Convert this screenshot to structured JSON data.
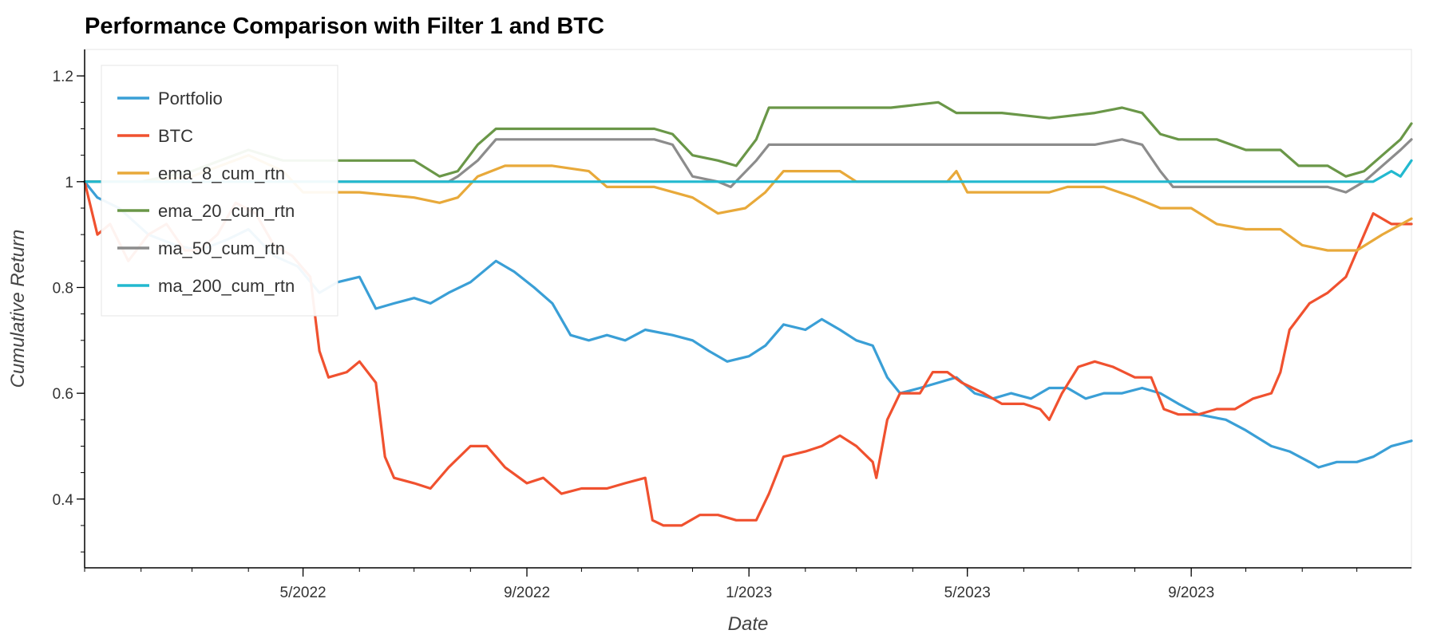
{
  "chart_data": {
    "type": "line",
    "title": "Performance Comparison with Filter 1 and BTC",
    "xlabel": "Date",
    "ylabel": "Cumulative Return",
    "x_range": [
      "2022-01-01",
      "2023-12-31"
    ],
    "ylim": [
      0.27,
      1.25
    ],
    "y_ticks": [
      0.4,
      0.6,
      0.8,
      1,
      1.2
    ],
    "y_tick_labels": [
      "0.4",
      "0.6",
      "0.8",
      "1",
      "1.2"
    ],
    "x_ticks": [
      "2022-05-01",
      "2022-09-01",
      "2023-01-01",
      "2023-05-01",
      "2023-09-01"
    ],
    "x_tick_labels": [
      "5/2022",
      "9/2022",
      "1/2023",
      "5/2023",
      "9/2023"
    ],
    "grid": false,
    "legend_position": "top-left",
    "series": [
      {
        "name": "Portfolio",
        "color": "#3a9fd6",
        "points": [
          [
            "2022-01-01",
            1.0
          ],
          [
            "2022-01-08",
            0.97
          ],
          [
            "2022-01-20",
            0.95
          ],
          [
            "2022-02-05",
            0.9
          ],
          [
            "2022-02-20",
            0.88
          ],
          [
            "2022-03-05",
            0.87
          ],
          [
            "2022-03-20",
            0.89
          ],
          [
            "2022-04-01",
            0.91
          ],
          [
            "2022-04-15",
            0.86
          ],
          [
            "2022-04-28",
            0.84
          ],
          [
            "2022-05-10",
            0.79
          ],
          [
            "2022-05-20",
            0.81
          ],
          [
            "2022-06-01",
            0.82
          ],
          [
            "2022-06-10",
            0.76
          ],
          [
            "2022-06-20",
            0.77
          ],
          [
            "2022-07-01",
            0.78
          ],
          [
            "2022-07-10",
            0.77
          ],
          [
            "2022-07-20",
            0.79
          ],
          [
            "2022-08-01",
            0.81
          ],
          [
            "2022-08-15",
            0.85
          ],
          [
            "2022-08-25",
            0.83
          ],
          [
            "2022-09-05",
            0.8
          ],
          [
            "2022-09-15",
            0.77
          ],
          [
            "2022-09-25",
            0.71
          ],
          [
            "2022-10-05",
            0.7
          ],
          [
            "2022-10-15",
            0.71
          ],
          [
            "2022-10-25",
            0.7
          ],
          [
            "2022-11-05",
            0.72
          ],
          [
            "2022-11-20",
            0.71
          ],
          [
            "2022-12-01",
            0.7
          ],
          [
            "2022-12-10",
            0.68
          ],
          [
            "2022-12-20",
            0.66
          ],
          [
            "2023-01-01",
            0.67
          ],
          [
            "2023-01-10",
            0.69
          ],
          [
            "2023-01-20",
            0.73
          ],
          [
            "2023-02-01",
            0.72
          ],
          [
            "2023-02-10",
            0.74
          ],
          [
            "2023-02-20",
            0.72
          ],
          [
            "2023-03-01",
            0.7
          ],
          [
            "2023-03-10",
            0.69
          ],
          [
            "2023-03-18",
            0.63
          ],
          [
            "2023-03-25",
            0.6
          ],
          [
            "2023-04-05",
            0.61
          ],
          [
            "2023-04-15",
            0.62
          ],
          [
            "2023-04-25",
            0.63
          ],
          [
            "2023-05-05",
            0.6
          ],
          [
            "2023-05-15",
            0.59
          ],
          [
            "2023-05-25",
            0.6
          ],
          [
            "2023-06-05",
            0.59
          ],
          [
            "2023-06-15",
            0.61
          ],
          [
            "2023-06-25",
            0.61
          ],
          [
            "2023-07-05",
            0.59
          ],
          [
            "2023-07-15",
            0.6
          ],
          [
            "2023-07-25",
            0.6
          ],
          [
            "2023-08-05",
            0.61
          ],
          [
            "2023-08-15",
            0.6
          ],
          [
            "2023-08-25",
            0.58
          ],
          [
            "2023-09-05",
            0.56
          ],
          [
            "2023-09-20",
            0.55
          ],
          [
            "2023-10-01",
            0.53
          ],
          [
            "2023-10-15",
            0.5
          ],
          [
            "2023-10-25",
            0.49
          ],
          [
            "2023-11-05",
            0.47
          ],
          [
            "2023-11-10",
            0.46
          ],
          [
            "2023-11-20",
            0.47
          ],
          [
            "2023-12-01",
            0.47
          ],
          [
            "2023-12-10",
            0.48
          ],
          [
            "2023-12-20",
            0.5
          ],
          [
            "2023-12-31",
            0.51
          ]
        ]
      },
      {
        "name": "BTC",
        "color": "#f0512f",
        "points": [
          [
            "2022-01-01",
            1.0
          ],
          [
            "2022-01-08",
            0.9
          ],
          [
            "2022-01-15",
            0.92
          ],
          [
            "2022-01-25",
            0.85
          ],
          [
            "2022-02-05",
            0.9
          ],
          [
            "2022-02-15",
            0.92
          ],
          [
            "2022-02-25",
            0.87
          ],
          [
            "2022-03-05",
            0.87
          ],
          [
            "2022-03-15",
            0.9
          ],
          [
            "2022-03-25",
            0.96
          ],
          [
            "2022-04-05",
            0.94
          ],
          [
            "2022-04-15",
            0.88
          ],
          [
            "2022-04-25",
            0.86
          ],
          [
            "2022-05-05",
            0.82
          ],
          [
            "2022-05-10",
            0.68
          ],
          [
            "2022-05-15",
            0.63
          ],
          [
            "2022-05-25",
            0.64
          ],
          [
            "2022-06-01",
            0.66
          ],
          [
            "2022-06-10",
            0.62
          ],
          [
            "2022-06-15",
            0.48
          ],
          [
            "2022-06-20",
            0.44
          ],
          [
            "2022-07-01",
            0.43
          ],
          [
            "2022-07-10",
            0.42
          ],
          [
            "2022-07-20",
            0.46
          ],
          [
            "2022-08-01",
            0.5
          ],
          [
            "2022-08-10",
            0.5
          ],
          [
            "2022-08-20",
            0.46
          ],
          [
            "2022-09-01",
            0.43
          ],
          [
            "2022-09-10",
            0.44
          ],
          [
            "2022-09-20",
            0.41
          ],
          [
            "2022-10-01",
            0.42
          ],
          [
            "2022-10-15",
            0.42
          ],
          [
            "2022-10-25",
            0.43
          ],
          [
            "2022-11-05",
            0.44
          ],
          [
            "2022-11-09",
            0.36
          ],
          [
            "2022-11-15",
            0.35
          ],
          [
            "2022-11-25",
            0.35
          ],
          [
            "2022-12-05",
            0.37
          ],
          [
            "2022-12-15",
            0.37
          ],
          [
            "2022-12-25",
            0.36
          ],
          [
            "2023-01-05",
            0.36
          ],
          [
            "2023-01-12",
            0.41
          ],
          [
            "2023-01-20",
            0.48
          ],
          [
            "2023-02-01",
            0.49
          ],
          [
            "2023-02-10",
            0.5
          ],
          [
            "2023-02-20",
            0.52
          ],
          [
            "2023-03-01",
            0.5
          ],
          [
            "2023-03-10",
            0.47
          ],
          [
            "2023-03-12",
            0.44
          ],
          [
            "2023-03-18",
            0.55
          ],
          [
            "2023-03-25",
            0.6
          ],
          [
            "2023-04-05",
            0.6
          ],
          [
            "2023-04-12",
            0.64
          ],
          [
            "2023-04-20",
            0.64
          ],
          [
            "2023-04-28",
            0.62
          ],
          [
            "2023-05-10",
            0.6
          ],
          [
            "2023-05-20",
            0.58
          ],
          [
            "2023-06-01",
            0.58
          ],
          [
            "2023-06-10",
            0.57
          ],
          [
            "2023-06-15",
            0.55
          ],
          [
            "2023-06-22",
            0.6
          ],
          [
            "2023-07-01",
            0.65
          ],
          [
            "2023-07-10",
            0.66
          ],
          [
            "2023-07-20",
            0.65
          ],
          [
            "2023-08-01",
            0.63
          ],
          [
            "2023-08-10",
            0.63
          ],
          [
            "2023-08-17",
            0.57
          ],
          [
            "2023-08-25",
            0.56
          ],
          [
            "2023-09-05",
            0.56
          ],
          [
            "2023-09-15",
            0.57
          ],
          [
            "2023-09-25",
            0.57
          ],
          [
            "2023-10-05",
            0.59
          ],
          [
            "2023-10-15",
            0.6
          ],
          [
            "2023-10-20",
            0.64
          ],
          [
            "2023-10-25",
            0.72
          ],
          [
            "2023-11-05",
            0.77
          ],
          [
            "2023-11-15",
            0.79
          ],
          [
            "2023-11-25",
            0.82
          ],
          [
            "2023-12-05",
            0.9
          ],
          [
            "2023-12-10",
            0.94
          ],
          [
            "2023-12-20",
            0.92
          ],
          [
            "2023-12-31",
            0.92
          ]
        ]
      },
      {
        "name": "ema_8_cum_rtn",
        "color": "#e8a93a",
        "points": [
          [
            "2022-01-01",
            1.0
          ],
          [
            "2022-02-01",
            1.0
          ],
          [
            "2022-03-01",
            1.01
          ],
          [
            "2022-04-01",
            1.05
          ],
          [
            "2022-04-20",
            1.02
          ],
          [
            "2022-05-01",
            0.98
          ],
          [
            "2022-06-01",
            0.98
          ],
          [
            "2022-07-01",
            0.97
          ],
          [
            "2022-07-15",
            0.96
          ],
          [
            "2022-07-25",
            0.97
          ],
          [
            "2022-08-05",
            1.01
          ],
          [
            "2022-08-20",
            1.03
          ],
          [
            "2022-09-15",
            1.03
          ],
          [
            "2022-10-05",
            1.02
          ],
          [
            "2022-10-15",
            0.99
          ],
          [
            "2022-11-10",
            0.99
          ],
          [
            "2022-12-01",
            0.97
          ],
          [
            "2022-12-15",
            0.94
          ],
          [
            "2022-12-30",
            0.95
          ],
          [
            "2023-01-10",
            0.98
          ],
          [
            "2023-01-20",
            1.02
          ],
          [
            "2023-02-20",
            1.02
          ],
          [
            "2023-03-01",
            1.0
          ],
          [
            "2023-04-20",
            1.0
          ],
          [
            "2023-04-25",
            1.02
          ],
          [
            "2023-05-01",
            0.98
          ],
          [
            "2023-06-15",
            0.98
          ],
          [
            "2023-06-25",
            0.99
          ],
          [
            "2023-07-15",
            0.99
          ],
          [
            "2023-08-01",
            0.97
          ],
          [
            "2023-08-15",
            0.95
          ],
          [
            "2023-09-01",
            0.95
          ],
          [
            "2023-09-15",
            0.92
          ],
          [
            "2023-10-01",
            0.91
          ],
          [
            "2023-10-20",
            0.91
          ],
          [
            "2023-11-01",
            0.88
          ],
          [
            "2023-11-15",
            0.87
          ],
          [
            "2023-12-01",
            0.87
          ],
          [
            "2023-12-15",
            0.9
          ],
          [
            "2023-12-31",
            0.93
          ]
        ]
      },
      {
        "name": "ema_20_cum_rtn",
        "color": "#6a9748",
        "points": [
          [
            "2022-01-01",
            1.0
          ],
          [
            "2022-02-01",
            1.0
          ],
          [
            "2022-03-01",
            1.02
          ],
          [
            "2022-04-01",
            1.06
          ],
          [
            "2022-04-20",
            1.04
          ],
          [
            "2022-05-01",
            1.04
          ],
          [
            "2022-06-15",
            1.04
          ],
          [
            "2022-07-01",
            1.04
          ],
          [
            "2022-07-15",
            1.01
          ],
          [
            "2022-07-25",
            1.02
          ],
          [
            "2022-08-05",
            1.07
          ],
          [
            "2022-08-15",
            1.1
          ],
          [
            "2022-09-15",
            1.1
          ],
          [
            "2022-10-15",
            1.1
          ],
          [
            "2022-11-10",
            1.1
          ],
          [
            "2022-11-20",
            1.09
          ],
          [
            "2022-12-01",
            1.05
          ],
          [
            "2022-12-15",
            1.04
          ],
          [
            "2022-12-25",
            1.03
          ],
          [
            "2023-01-05",
            1.08
          ],
          [
            "2023-01-12",
            1.14
          ],
          [
            "2023-02-20",
            1.14
          ],
          [
            "2023-03-20",
            1.14
          ],
          [
            "2023-04-15",
            1.15
          ],
          [
            "2023-04-25",
            1.13
          ],
          [
            "2023-05-20",
            1.13
          ],
          [
            "2023-06-15",
            1.12
          ],
          [
            "2023-07-10",
            1.13
          ],
          [
            "2023-07-25",
            1.14
          ],
          [
            "2023-08-05",
            1.13
          ],
          [
            "2023-08-15",
            1.09
          ],
          [
            "2023-08-25",
            1.08
          ],
          [
            "2023-09-15",
            1.08
          ],
          [
            "2023-10-01",
            1.06
          ],
          [
            "2023-10-20",
            1.06
          ],
          [
            "2023-10-30",
            1.03
          ],
          [
            "2023-11-15",
            1.03
          ],
          [
            "2023-11-25",
            1.01
          ],
          [
            "2023-12-05",
            1.02
          ],
          [
            "2023-12-15",
            1.05
          ],
          [
            "2023-12-25",
            1.08
          ],
          [
            "2023-12-31",
            1.11
          ]
        ]
      },
      {
        "name": "ma_50_cum_rtn",
        "color": "#8c8c8c",
        "points": [
          [
            "2022-01-01",
            1.0
          ],
          [
            "2022-06-01",
            1.0
          ],
          [
            "2022-07-20",
            1.0
          ],
          [
            "2022-07-25",
            1.01
          ],
          [
            "2022-08-05",
            1.04
          ],
          [
            "2022-08-15",
            1.08
          ],
          [
            "2022-09-15",
            1.08
          ],
          [
            "2022-10-15",
            1.08
          ],
          [
            "2022-11-10",
            1.08
          ],
          [
            "2022-11-20",
            1.07
          ],
          [
            "2022-12-01",
            1.01
          ],
          [
            "2022-12-15",
            1.0
          ],
          [
            "2022-12-22",
            0.99
          ],
          [
            "2023-01-05",
            1.04
          ],
          [
            "2023-01-12",
            1.07
          ],
          [
            "2023-02-20",
            1.07
          ],
          [
            "2023-04-15",
            1.07
          ],
          [
            "2023-05-20",
            1.07
          ],
          [
            "2023-07-10",
            1.07
          ],
          [
            "2023-07-25",
            1.08
          ],
          [
            "2023-08-05",
            1.07
          ],
          [
            "2023-08-15",
            1.02
          ],
          [
            "2023-08-22",
            0.99
          ],
          [
            "2023-09-15",
            0.99
          ],
          [
            "2023-10-15",
            0.99
          ],
          [
            "2023-11-15",
            0.99
          ],
          [
            "2023-11-25",
            0.98
          ],
          [
            "2023-12-05",
            1.0
          ],
          [
            "2023-12-15",
            1.03
          ],
          [
            "2023-12-25",
            1.06
          ],
          [
            "2023-12-31",
            1.08
          ]
        ]
      },
      {
        "name": "ma_200_cum_rtn",
        "color": "#22b9cf",
        "points": [
          [
            "2022-01-01",
            1.0
          ],
          [
            "2022-06-01",
            1.0
          ],
          [
            "2022-12-31",
            1.0
          ],
          [
            "2023-06-01",
            1.0
          ],
          [
            "2023-12-10",
            1.0
          ],
          [
            "2023-12-20",
            1.02
          ],
          [
            "2023-12-25",
            1.01
          ],
          [
            "2023-12-31",
            1.04
          ]
        ]
      }
    ]
  }
}
